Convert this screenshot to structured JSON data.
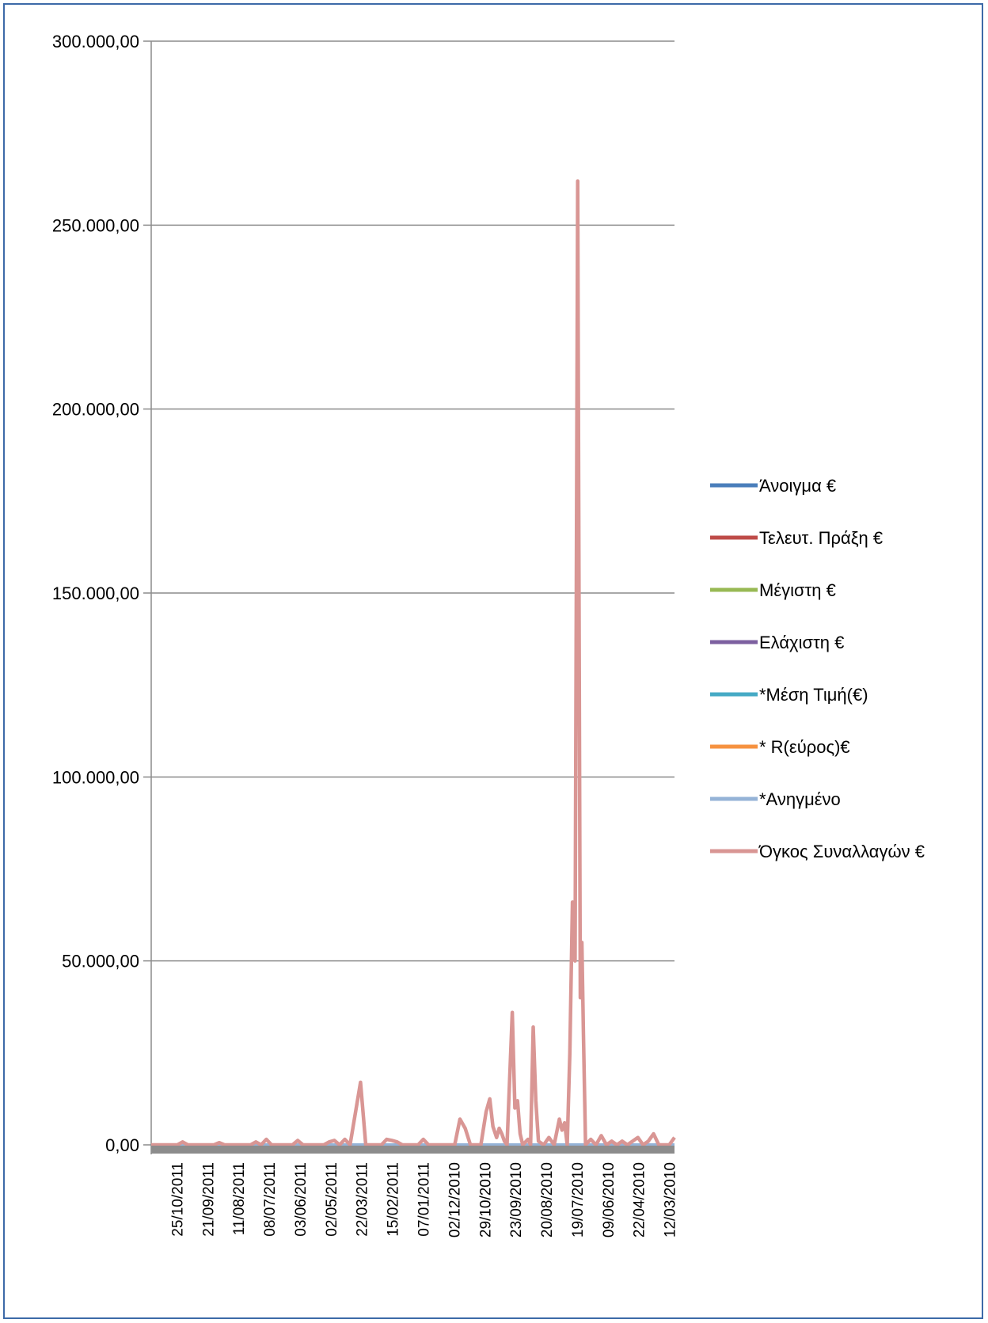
{
  "chart_data": {
    "type": "line",
    "title": "",
    "xlabel": "",
    "ylabel": "",
    "ylim": [
      0,
      300000
    ],
    "grid": "horizontal",
    "legend_position": "right",
    "y_ticks": [
      {
        "value": 0,
        "label": "0,00"
      },
      {
        "value": 50000,
        "label": "50.000,00"
      },
      {
        "value": 100000,
        "label": "100.000,00"
      },
      {
        "value": 150000,
        "label": "150.000,00"
      },
      {
        "value": 200000,
        "label": "200.000,00"
      },
      {
        "value": 250000,
        "label": "250.000,00"
      },
      {
        "value": 300000,
        "label": "300.000,00"
      }
    ],
    "x_tick_labels": [
      "25/10/2011",
      "21/09/2011",
      "11/08/2011",
      "08/07/2011",
      "03/06/2011",
      "02/05/2011",
      "22/03/2011",
      "15/02/2011",
      "07/01/2011",
      "02/12/2010",
      "29/10/2010",
      "23/09/2010",
      "20/08/2010",
      "19/07/2010",
      "09/06/2010",
      "22/04/2010",
      "12/03/2010"
    ],
    "series": [
      {
        "name": "Άνοιγμα €",
        "color": "#4a7ebb",
        "values": [
          0,
          0
        ]
      },
      {
        "name": "Τελευτ.  Πράξη €",
        "color": "#be4b48",
        "values": [
          0,
          0
        ]
      },
      {
        "name": "Μέγιστη €",
        "color": "#98b954",
        "values": [
          0,
          0
        ]
      },
      {
        "name": "Ελάχιστη €",
        "color": "#7d60a0",
        "values": [
          0,
          0
        ]
      },
      {
        "name": "*Μέση Τιμή(€)",
        "color": "#46aac5",
        "values": [
          0,
          0
        ]
      },
      {
        "name": "*  R(εύρος)€",
        "color": "#f69240",
        "values": [
          0,
          0
        ]
      },
      {
        "name": "*Ανηγμένο",
        "color": "#95b3d7",
        "values": [
          0,
          0
        ]
      },
      {
        "name": "Όγκος Συναλλαγών  €",
        "color": "#d99694",
        "points": [
          [
            0,
            0
          ],
          [
            5,
            0
          ],
          [
            6,
            800
          ],
          [
            7,
            0
          ],
          [
            12,
            0
          ],
          [
            13,
            600
          ],
          [
            14,
            0
          ],
          [
            19,
            0
          ],
          [
            20,
            800
          ],
          [
            21,
            0
          ],
          [
            22,
            1500
          ],
          [
            23,
            0
          ],
          [
            27,
            0
          ],
          [
            28,
            1200
          ],
          [
            29,
            0
          ],
          [
            33,
            0
          ],
          [
            34,
            800
          ],
          [
            35,
            1200
          ],
          [
            36,
            0
          ],
          [
            37,
            1500
          ],
          [
            38,
            0
          ],
          [
            40,
            17000
          ],
          [
            41,
            0
          ],
          [
            44,
            0
          ],
          [
            45,
            1500
          ],
          [
            46,
            1200
          ],
          [
            47,
            800
          ],
          [
            48,
            0
          ],
          [
            51,
            0
          ],
          [
            52,
            1500
          ],
          [
            53,
            0
          ],
          [
            58,
            0
          ],
          [
            59,
            7000
          ],
          [
            60,
            4500
          ],
          [
            61,
            0
          ],
          [
            63,
            0
          ],
          [
            64,
            9000
          ],
          [
            64.7,
            12500
          ],
          [
            65.3,
            5000
          ],
          [
            66,
            2000
          ],
          [
            66.5,
            4500
          ],
          [
            67,
            3000
          ],
          [
            67.5,
            1000
          ],
          [
            68,
            0
          ],
          [
            69,
            36000
          ],
          [
            69.5,
            10000
          ],
          [
            70,
            12000
          ],
          [
            70.5,
            3000
          ],
          [
            71,
            0
          ],
          [
            72,
            1500
          ],
          [
            72.5,
            0
          ],
          [
            73,
            32000
          ],
          [
            73.5,
            12000
          ],
          [
            74,
            1000
          ],
          [
            75,
            0
          ],
          [
            76,
            2000
          ],
          [
            77,
            0
          ],
          [
            78,
            7000
          ],
          [
            78.5,
            4000
          ],
          [
            79,
            6000
          ],
          [
            79.5,
            0
          ],
          [
            80,
            25000
          ],
          [
            80.5,
            66000
          ],
          [
            81,
            50000
          ],
          [
            81.5,
            262000
          ],
          [
            82,
            40000
          ],
          [
            82.3,
            55000
          ],
          [
            82.6,
            30000
          ],
          [
            83,
            0
          ],
          [
            84,
            1500
          ],
          [
            85,
            0
          ],
          [
            86,
            2500
          ],
          [
            87,
            0
          ],
          [
            88,
            1000
          ],
          [
            89,
            0
          ],
          [
            90,
            1000
          ],
          [
            91,
            0
          ],
          [
            93,
            2000
          ],
          [
            94,
            0
          ],
          [
            95,
            1000
          ],
          [
            96,
            3000
          ],
          [
            97,
            0
          ],
          [
            99,
            0
          ],
          [
            100,
            2000
          ]
        ]
      }
    ]
  }
}
